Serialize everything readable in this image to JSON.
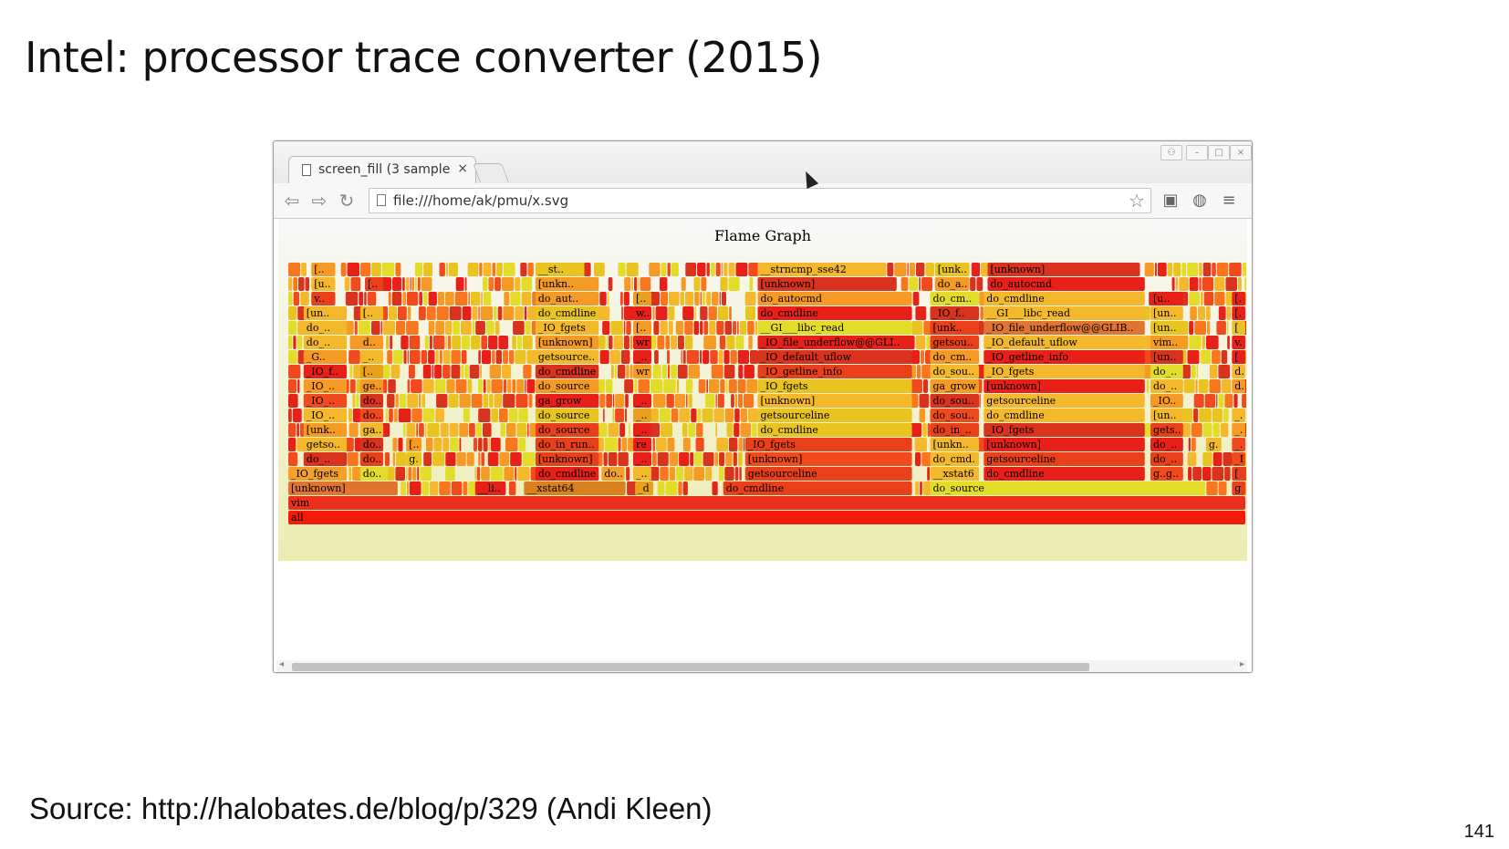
{
  "slide": {
    "title": "Intel: processor trace converter (2015)",
    "source": "Source: http://halobates.de/blog/p/329 (Andi Kleen)",
    "page_number": "141"
  },
  "browser": {
    "tab_title": "screen_fill (3 sample",
    "tab_close": "×",
    "url": "file:///home/ak/pmu/x.svg",
    "icons": [
      "back-icon",
      "forward-icon",
      "reload-icon",
      "page-icon",
      "star-icon",
      "extension-icon",
      "globe-icon",
      "menu-icon",
      "user-icon",
      "minimize-icon",
      "maximize-icon",
      "close-icon"
    ]
  },
  "flamegraph": {
    "title": "Flame Graph",
    "palette": [
      "#e8201a",
      "#f04a1e",
      "#f7761e",
      "#f59a25",
      "#e9c31f",
      "#e2dd28",
      "#d9321e",
      "#f3b82c"
    ],
    "frames": [
      {
        "label": "all",
        "row": 0,
        "x0": 0.0,
        "x1": 1.0,
        "color": "#f41a0c"
      },
      {
        "label": "vim",
        "row": 1,
        "x0": 0.0,
        "x1": 1.0,
        "color": "#e8301d"
      },
      {
        "label": "[unknown]",
        "row": 2,
        "x0": 0.0,
        "x1": 0.115,
        "color": "#e07430"
      },
      {
        "label": "__li..",
        "row": 2,
        "x0": 0.195,
        "x1": 0.228,
        "color": "#e8201a"
      },
      {
        "label": "__xstat64",
        "row": 2,
        "x0": 0.246,
        "x1": 0.353,
        "color": "#d9811e"
      },
      {
        "label": "_d..",
        "row": 2,
        "x0": 0.362,
        "x1": 0.382,
        "color": "#e8a01e"
      },
      {
        "label": "do_cmdline",
        "row": 2,
        "x0": 0.454,
        "x1": 0.652,
        "color": "#e8401a"
      },
      {
        "label": "do_source",
        "row": 2,
        "x0": 0.67,
        "x1": 0.958,
        "color": "#e2dd28"
      },
      {
        "label": "ge",
        "row": 2,
        "x0": 0.985,
        "x1": 1.0,
        "color": "#e8401a"
      },
      {
        "label": "_IO_fgets",
        "row": 3,
        "x0": 0.0,
        "x1": 0.062,
        "color": "#f3a02c"
      },
      {
        "label": "do..",
        "row": 3,
        "x0": 0.075,
        "x1": 0.105,
        "color": "#e2dd28"
      },
      {
        "label": "do_cmdline",
        "row": 3,
        "x0": 0.258,
        "x1": 0.325,
        "color": "#e8201a"
      },
      {
        "label": "do..",
        "row": 3,
        "x0": 0.327,
        "x1": 0.352,
        "color": "#f3a02c"
      },
      {
        "label": "_..",
        "row": 3,
        "x0": 0.36,
        "x1": 0.38,
        "color": "#f3b82c"
      },
      {
        "label": "getsourceline",
        "row": 3,
        "x0": 0.477,
        "x1": 0.652,
        "color": "#e8401a"
      },
      {
        "label": "__xstat64",
        "row": 3,
        "x0": 0.67,
        "x1": 0.722,
        "color": "#f3b82c"
      },
      {
        "label": "do_cmdline",
        "row": 3,
        "x0": 0.726,
        "x1": 0.895,
        "color": "#e8201a"
      },
      {
        "label": "g..g..",
        "row": 3,
        "x0": 0.9,
        "x1": 0.935,
        "color": "#f04a1e"
      },
      {
        "label": "[u",
        "row": 3,
        "x0": 0.985,
        "x1": 1.0,
        "color": "#e8401a"
      },
      {
        "label": "do_..",
        "row": 4,
        "x0": 0.016,
        "x1": 0.062,
        "color": "#d9321e"
      },
      {
        "label": "do..",
        "row": 4,
        "x0": 0.075,
        "x1": 0.1,
        "color": "#e8401a"
      },
      {
        "label": "g..",
        "row": 4,
        "x0": 0.123,
        "x1": 0.14,
        "color": "#e9c31f"
      },
      {
        "label": "[unknown]",
        "row": 4,
        "x0": 0.258,
        "x1": 0.325,
        "color": "#e8401a"
      },
      {
        "label": "_..",
        "row": 4,
        "x0": 0.36,
        "x1": 0.38,
        "color": "#e8201a"
      },
      {
        "label": "[unknown]",
        "row": 4,
        "x0": 0.477,
        "x1": 0.652,
        "color": "#f04a1e"
      },
      {
        "label": "do_cmd..",
        "row": 4,
        "x0": 0.67,
        "x1": 0.722,
        "color": "#f3b82c"
      },
      {
        "label": "getsourceline",
        "row": 4,
        "x0": 0.726,
        "x1": 0.895,
        "color": "#e8401a"
      },
      {
        "label": "do_..",
        "row": 4,
        "x0": 0.9,
        "x1": 0.935,
        "color": "#e8401a"
      },
      {
        "label": "_I",
        "row": 4,
        "x0": 0.985,
        "x1": 1.0,
        "color": "#f04a1e"
      },
      {
        "label": "getso..",
        "row": 5,
        "x0": 0.016,
        "x1": 0.062,
        "color": "#f3b82c"
      },
      {
        "label": "do..",
        "row": 5,
        "x0": 0.075,
        "x1": 0.1,
        "color": "#d9321e"
      },
      {
        "label": "[..",
        "row": 5,
        "x0": 0.123,
        "x1": 0.14,
        "color": "#f59a25"
      },
      {
        "label": "do_in_run..",
        "row": 5,
        "x0": 0.258,
        "x1": 0.325,
        "color": "#e8401a"
      },
      {
        "label": "rea..",
        "row": 5,
        "x0": 0.36,
        "x1": 0.38,
        "color": "#e8201a"
      },
      {
        "label": "_IO_fgets",
        "row": 5,
        "x0": 0.477,
        "x1": 0.652,
        "color": "#e8401a"
      },
      {
        "label": "[unkn..",
        "row": 5,
        "x0": 0.67,
        "x1": 0.722,
        "color": "#f3b82c"
      },
      {
        "label": "[unknown]",
        "row": 5,
        "x0": 0.726,
        "x1": 0.895,
        "color": "#e8201a"
      },
      {
        "label": "do_..",
        "row": 5,
        "x0": 0.9,
        "x1": 0.935,
        "color": "#e8201a"
      },
      {
        "label": "g..",
        "row": 5,
        "x0": 0.958,
        "x1": 0.975,
        "color": "#f3b82c"
      },
      {
        "label": "_..",
        "row": 5,
        "x0": 0.985,
        "x1": 1.0,
        "color": "#f04a1e"
      },
      {
        "label": "[unk..",
        "row": 6,
        "x0": 0.016,
        "x1": 0.062,
        "color": "#f59a25"
      },
      {
        "label": "ga..",
        "row": 6,
        "x0": 0.075,
        "x1": 0.1,
        "color": "#f3b82c"
      },
      {
        "label": "do_source",
        "row": 6,
        "x0": 0.258,
        "x1": 0.325,
        "color": "#e8401a"
      },
      {
        "label": "_..",
        "row": 6,
        "x0": 0.36,
        "x1": 0.38,
        "color": "#e8201a"
      },
      {
        "label": "do_cmdline",
        "row": 6,
        "x0": 0.49,
        "x1": 0.652,
        "color": "#e9c31f"
      },
      {
        "label": "do_in_..",
        "row": 6,
        "x0": 0.67,
        "x1": 0.722,
        "color": "#e8401a"
      },
      {
        "label": "_IO_fgets",
        "row": 6,
        "x0": 0.726,
        "x1": 0.895,
        "color": "#d9321e"
      },
      {
        "label": "gets..",
        "row": 6,
        "x0": 0.9,
        "x1": 0.935,
        "color": "#e8401a"
      },
      {
        "label": "_..",
        "row": 6,
        "x0": 0.985,
        "x1": 1.0,
        "color": "#f59a25"
      },
      {
        "label": "_IO_..",
        "row": 7,
        "x0": 0.016,
        "x1": 0.062,
        "color": "#f3b82c"
      },
      {
        "label": "do..",
        "row": 7,
        "x0": 0.075,
        "x1": 0.1,
        "color": "#f04a1e"
      },
      {
        "label": "do_source",
        "row": 7,
        "x0": 0.258,
        "x1": 0.325,
        "color": "#e9c31f"
      },
      {
        "label": "_..",
        "row": 7,
        "x0": 0.36,
        "x1": 0.38,
        "color": "#e8a01e"
      },
      {
        "label": "getsourceline",
        "row": 7,
        "x0": 0.49,
        "x1": 0.652,
        "color": "#e9c31f"
      },
      {
        "label": "do_sou..",
        "row": 7,
        "x0": 0.67,
        "x1": 0.722,
        "color": "#f04a1e"
      },
      {
        "label": "do_cmdline",
        "row": 7,
        "x0": 0.726,
        "x1": 0.895,
        "color": "#f3b82c"
      },
      {
        "label": "[un..",
        "row": 7,
        "x0": 0.9,
        "x1": 0.935,
        "color": "#f3b82c"
      },
      {
        "label": "_..",
        "row": 7,
        "x0": 0.985,
        "x1": 1.0,
        "color": "#f3b82c"
      },
      {
        "label": "_IO_..",
        "row": 8,
        "x0": 0.016,
        "x1": 0.062,
        "color": "#f04a1e"
      },
      {
        "label": "do..",
        "row": 8,
        "x0": 0.075,
        "x1": 0.1,
        "color": "#d9321e"
      },
      {
        "label": "ga_grow",
        "row": 8,
        "x0": 0.258,
        "x1": 0.325,
        "color": "#e8201a"
      },
      {
        "label": "_..",
        "row": 8,
        "x0": 0.36,
        "x1": 0.38,
        "color": "#e8201a"
      },
      {
        "label": "[unknown]",
        "row": 8,
        "x0": 0.49,
        "x1": 0.652,
        "color": "#f3b82c"
      },
      {
        "label": "do_sou..",
        "row": 8,
        "x0": 0.67,
        "x1": 0.722,
        "color": "#d9321e"
      },
      {
        "label": "getsourceline",
        "row": 8,
        "x0": 0.726,
        "x1": 0.895,
        "color": "#f3b82c"
      },
      {
        "label": "_IO..",
        "row": 8,
        "x0": 0.9,
        "x1": 0.935,
        "color": "#f59a25"
      },
      {
        "label": "_IO_..",
        "row": 9,
        "x0": 0.016,
        "x1": 0.062,
        "color": "#f59a25"
      },
      {
        "label": "ge..",
        "row": 9,
        "x0": 0.075,
        "x1": 0.1,
        "color": "#f59a25"
      },
      {
        "label": "do_source",
        "row": 9,
        "x0": 0.258,
        "x1": 0.325,
        "color": "#f59a25"
      },
      {
        "label": "_IO_fgets",
        "row": 9,
        "x0": 0.49,
        "x1": 0.652,
        "color": "#e9c31f"
      },
      {
        "label": "ga_grow",
        "row": 9,
        "x0": 0.67,
        "x1": 0.722,
        "color": "#f59a25"
      },
      {
        "label": "[unknown]",
        "row": 9,
        "x0": 0.726,
        "x1": 0.895,
        "color": "#e8201a"
      },
      {
        "label": "do_..",
        "row": 9,
        "x0": 0.9,
        "x1": 0.935,
        "color": "#f3b82c"
      },
      {
        "label": "d..",
        "row": 9,
        "x0": 0.985,
        "x1": 1.0,
        "color": "#f59a25"
      },
      {
        "label": "_IO_f..",
        "row": 10,
        "x0": 0.016,
        "x1": 0.062,
        "color": "#e8201a"
      },
      {
        "label": "[..",
        "row": 10,
        "x0": 0.075,
        "x1": 0.1,
        "color": "#e8a01e"
      },
      {
        "label": "do_cmdline",
        "row": 10,
        "x0": 0.258,
        "x1": 0.325,
        "color": "#d9321e"
      },
      {
        "label": "wr..",
        "row": 10,
        "x0": 0.36,
        "x1": 0.38,
        "color": "#f59a25"
      },
      {
        "label": "_IO_getline_info",
        "row": 10,
        "x0": 0.49,
        "x1": 0.652,
        "color": "#e8401a"
      },
      {
        "label": "do_sou..",
        "row": 10,
        "x0": 0.67,
        "x1": 0.722,
        "color": "#f3b82c"
      },
      {
        "label": "_IO_fgets",
        "row": 10,
        "x0": 0.726,
        "x1": 0.895,
        "color": "#f3b82c"
      },
      {
        "label": "do_..",
        "row": 10,
        "x0": 0.9,
        "x1": 0.935,
        "color": "#e2dd28"
      },
      {
        "label": "d..",
        "row": 10,
        "x0": 0.985,
        "x1": 1.0,
        "color": "#f3b82c"
      },
      {
        "label": "_G..",
        "row": 11,
        "x0": 0.016,
        "x1": 0.062,
        "color": "#f59a25"
      },
      {
        "label": "_..",
        "row": 11,
        "x0": 0.075,
        "x1": 0.1,
        "color": "#f3b82c"
      },
      {
        "label": "getsource..",
        "row": 11,
        "x0": 0.258,
        "x1": 0.325,
        "color": "#f3b82c"
      },
      {
        "label": "_..",
        "row": 11,
        "x0": 0.36,
        "x1": 0.38,
        "color": "#e8201a"
      },
      {
        "label": "_IO_default_uflow",
        "row": 11,
        "x0": 0.49,
        "x1": 0.652,
        "color": "#d9321e"
      },
      {
        "label": "do_cm..",
        "row": 11,
        "x0": 0.67,
        "x1": 0.722,
        "color": "#f59a25"
      },
      {
        "label": "_IO_getline_info",
        "row": 11,
        "x0": 0.726,
        "x1": 0.895,
        "color": "#e8201a"
      },
      {
        "label": "[un..",
        "row": 11,
        "x0": 0.9,
        "x1": 0.935,
        "color": "#d9321e"
      },
      {
        "label": "[u",
        "row": 11,
        "x0": 0.985,
        "x1": 1.0,
        "color": "#e8201a"
      },
      {
        "label": "do_..",
        "row": 12,
        "x0": 0.016,
        "x1": 0.062,
        "color": "#f3b82c"
      },
      {
        "label": "d..",
        "row": 12,
        "x0": 0.075,
        "x1": 0.1,
        "color": "#f59a25"
      },
      {
        "label": "[unknown]",
        "row": 12,
        "x0": 0.258,
        "x1": 0.325,
        "color": "#f59a25"
      },
      {
        "label": "wr..",
        "row": 12,
        "x0": 0.36,
        "x1": 0.38,
        "color": "#e8201a"
      },
      {
        "label": "_IO_file_underflow@@GLI..",
        "row": 12,
        "x0": 0.49,
        "x1": 0.652,
        "color": "#e8201a"
      },
      {
        "label": "getsou..",
        "row": 12,
        "x0": 0.67,
        "x1": 0.722,
        "color": "#e8401a"
      },
      {
        "label": "_IO_default_uflow",
        "row": 12,
        "x0": 0.726,
        "x1": 0.895,
        "color": "#f3b82c"
      },
      {
        "label": "vim..",
        "row": 12,
        "x0": 0.9,
        "x1": 0.935,
        "color": "#f59a25"
      },
      {
        "label": "v..",
        "row": 12,
        "x0": 0.985,
        "x1": 1.0,
        "color": "#e8201a"
      },
      {
        "label": "do_..",
        "row": 13,
        "x0": 0.016,
        "x1": 0.062,
        "color": "#f3b82c"
      },
      {
        "label": "_IO_fgets",
        "row": 13,
        "x0": 0.258,
        "x1": 0.325,
        "color": "#f3b82c"
      },
      {
        "label": "[..",
        "row": 13,
        "x0": 0.36,
        "x1": 0.38,
        "color": "#f59a25"
      },
      {
        "label": "__GI___libc_read",
        "row": 13,
        "x0": 0.49,
        "x1": 0.652,
        "color": "#e2dd28"
      },
      {
        "label": "[unk..",
        "row": 13,
        "x0": 0.67,
        "x1": 0.722,
        "color": "#e8401a"
      },
      {
        "label": "_IO_file_underflow@@GLIB..",
        "row": 13,
        "x0": 0.726,
        "x1": 0.895,
        "color": "#e07430"
      },
      {
        "label": "[un..",
        "row": 13,
        "x0": 0.9,
        "x1": 0.935,
        "color": "#e9c31f"
      },
      {
        "label": "[u",
        "row": 13,
        "x0": 0.985,
        "x1": 1.0,
        "color": "#e9c31f"
      },
      {
        "label": "[un..",
        "row": 14,
        "x0": 0.016,
        "x1": 0.062,
        "color": "#f3b82c"
      },
      {
        "label": "[..",
        "row": 14,
        "x0": 0.075,
        "x1": 0.1,
        "color": "#f3b82c"
      },
      {
        "label": "do_cmdline",
        "row": 14,
        "x0": 0.258,
        "x1": 0.325,
        "color": "#e9c31f"
      },
      {
        "label": "w..",
        "row": 14,
        "x0": 0.36,
        "x1": 0.38,
        "color": "#e8201a"
      },
      {
        "label": "do_cmdline",
        "row": 14,
        "x0": 0.49,
        "x1": 0.652,
        "color": "#e8201a"
      },
      {
        "label": "_IO_f..",
        "row": 14,
        "x0": 0.67,
        "x1": 0.722,
        "color": "#d9321e"
      },
      {
        "label": "__GI___libc_read",
        "row": 14,
        "x0": 0.726,
        "x1": 0.895,
        "color": "#f3b82c"
      },
      {
        "label": "[un..",
        "row": 14,
        "x0": 0.9,
        "x1": 0.935,
        "color": "#f3b82c"
      },
      {
        "label": "[..",
        "row": 14,
        "x0": 0.985,
        "x1": 1.0,
        "color": "#e8201a"
      },
      {
        "label": "v..",
        "row": 15,
        "x0": 0.024,
        "x1": 0.05,
        "color": "#e8401a"
      },
      {
        "label": "do_aut..",
        "row": 15,
        "x0": 0.258,
        "x1": 0.325,
        "color": "#f59a25"
      },
      {
        "label": "[..",
        "row": 15,
        "x0": 0.36,
        "x1": 0.38,
        "color": "#e8a01e"
      },
      {
        "label": "do_autocmd",
        "row": 15,
        "x0": 0.49,
        "x1": 0.652,
        "color": "#f59a25"
      },
      {
        "label": "do_cm..",
        "row": 15,
        "x0": 0.67,
        "x1": 0.722,
        "color": "#e2dd28"
      },
      {
        "label": "do_cmdline",
        "row": 15,
        "x0": 0.726,
        "x1": 0.895,
        "color": "#f3b82c"
      },
      {
        "label": "[u..",
        "row": 15,
        "x0": 0.9,
        "x1": 0.935,
        "color": "#e8201a"
      },
      {
        "label": "[..",
        "row": 15,
        "x0": 0.985,
        "x1": 1.0,
        "color": "#e8201a"
      },
      {
        "label": "[u..",
        "row": 16,
        "x0": 0.024,
        "x1": 0.05,
        "color": "#f3b82c"
      },
      {
        "label": "[..",
        "row": 16,
        "x0": 0.08,
        "x1": 0.1,
        "color": "#e8401a"
      },
      {
        "label": "[unkn..",
        "row": 16,
        "x0": 0.258,
        "x1": 0.325,
        "color": "#f59a25"
      },
      {
        "label": "[unknown]",
        "row": 16,
        "x0": 0.49,
        "x1": 0.636,
        "color": "#d9321e"
      },
      {
        "label": "do_a..",
        "row": 16,
        "x0": 0.675,
        "x1": 0.712,
        "color": "#f59a25"
      },
      {
        "label": "do_autocmd",
        "row": 16,
        "x0": 0.73,
        "x1": 0.895,
        "color": "#e8201a"
      },
      {
        "label": "[..",
        "row": 17,
        "x0": 0.024,
        "x1": 0.05,
        "color": "#f59a25"
      },
      {
        "label": "__st..",
        "row": 17,
        "x0": 0.258,
        "x1": 0.31,
        "color": "#e9c31f"
      },
      {
        "label": "__strncmp_sse42",
        "row": 17,
        "x0": 0.49,
        "x1": 0.625,
        "color": "#f3b82c"
      },
      {
        "label": "[unk..",
        "row": 17,
        "x0": 0.675,
        "x1": 0.712,
        "color": "#e9c31f"
      },
      {
        "label": "[unknown]",
        "row": 17,
        "x0": 0.73,
        "x1": 0.89,
        "color": "#d9321e"
      }
    ]
  }
}
